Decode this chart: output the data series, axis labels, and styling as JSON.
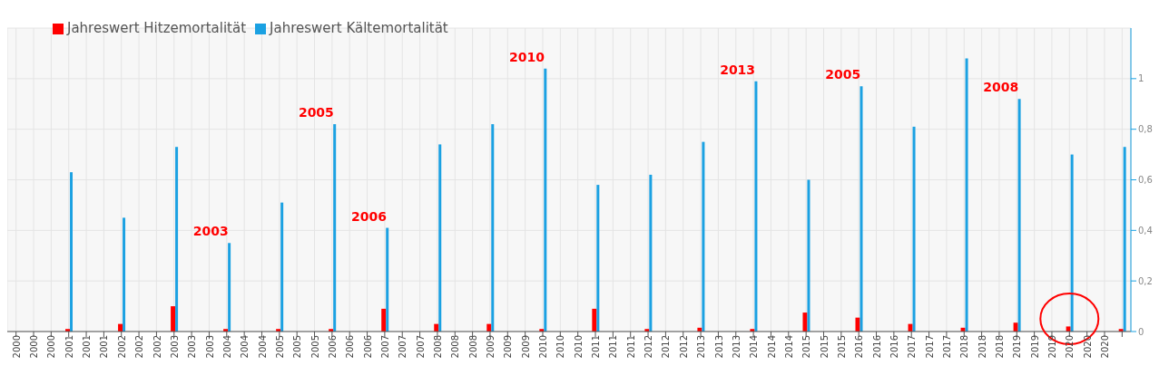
{
  "chart_data": {
    "type": "bar",
    "categories": [
      "2000",
      "2000",
      "2000",
      "2001",
      "2001",
      "2001",
      "2002",
      "2002",
      "2002",
      "2003",
      "2003",
      "2003",
      "2004",
      "2004",
      "2004",
      "2005",
      "2005",
      "2005",
      "2006",
      "2006",
      "2006",
      "2007",
      "2007",
      "2007",
      "2008",
      "2008",
      "2008",
      "2009",
      "2009",
      "2009",
      "2010",
      "2010",
      "2010",
      "2011",
      "2011",
      "2011",
      "2012",
      "2012",
      "2012",
      "2013",
      "2013",
      "2013",
      "2014",
      "2014",
      "2014",
      "2015",
      "2015",
      "2015",
      "2016",
      "2016",
      "2016",
      "2017",
      "2017",
      "2017",
      "2018",
      "2018",
      "2018",
      "2019",
      "2019",
      "2019",
      "2020",
      "2020",
      "2020",
      null
    ],
    "series": [
      {
        "name": "Jahreswert Hitzemortalität",
        "color": "#ff0000",
        "values": [
          null,
          null,
          null,
          0.01,
          null,
          null,
          0.03,
          null,
          null,
          0.1,
          null,
          null,
          0.01,
          null,
          null,
          0.01,
          null,
          null,
          0.01,
          null,
          null,
          0.09,
          null,
          null,
          0.03,
          null,
          null,
          0.03,
          null,
          null,
          0.01,
          null,
          null,
          0.09,
          null,
          null,
          0.01,
          null,
          null,
          0.015,
          null,
          null,
          0.01,
          null,
          null,
          0.075,
          null,
          null,
          0.055,
          null,
          null,
          0.03,
          null,
          null,
          0.015,
          null,
          null,
          0.035,
          null,
          null,
          0.02,
          null,
          null,
          0.01
        ]
      },
      {
        "name": "Jahreswert Kältemortalität",
        "color": "#1ba1e2",
        "values": [
          null,
          null,
          null,
          0.63,
          null,
          null,
          0.45,
          null,
          null,
          0.73,
          null,
          null,
          0.35,
          null,
          null,
          0.51,
          null,
          null,
          0.82,
          null,
          null,
          0.41,
          null,
          null,
          0.74,
          null,
          null,
          0.82,
          null,
          null,
          1.04,
          null,
          null,
          0.58,
          null,
          null,
          0.62,
          null,
          null,
          0.75,
          null,
          null,
          0.99,
          null,
          null,
          0.6,
          null,
          null,
          0.97,
          null,
          null,
          0.81,
          null,
          null,
          1.08,
          null,
          null,
          0.92,
          null,
          null,
          0.7,
          null,
          null,
          0.73
        ]
      }
    ],
    "ylim": [
      0,
      1.2
    ],
    "yticks": [
      0,
      {
        "value": 0.2,
        "label": "0,2"
      },
      {
        "value": 0.4,
        "label": "0,4"
      },
      {
        "value": 0.6,
        "label": "0,6"
      },
      {
        "value": 0.8,
        "label": "0,8"
      },
      1
    ],
    "grid": true,
    "legend": "top left",
    "annotations": [
      {
        "text": "2003",
        "x": "2004",
        "y": 0.35
      },
      {
        "text": "2005",
        "x": "2006",
        "y": 0.82
      },
      {
        "text": "2006",
        "x": "2007",
        "y": 0.41
      },
      {
        "text": "2010",
        "x": "2010",
        "y": 1.04
      },
      {
        "text": "2013",
        "x": "2014",
        "y": 0.99
      },
      {
        "text": "2005",
        "x": "2016",
        "y": 0.97
      },
      {
        "text": "2008",
        "x": "2019",
        "y": 0.92
      }
    ]
  }
}
